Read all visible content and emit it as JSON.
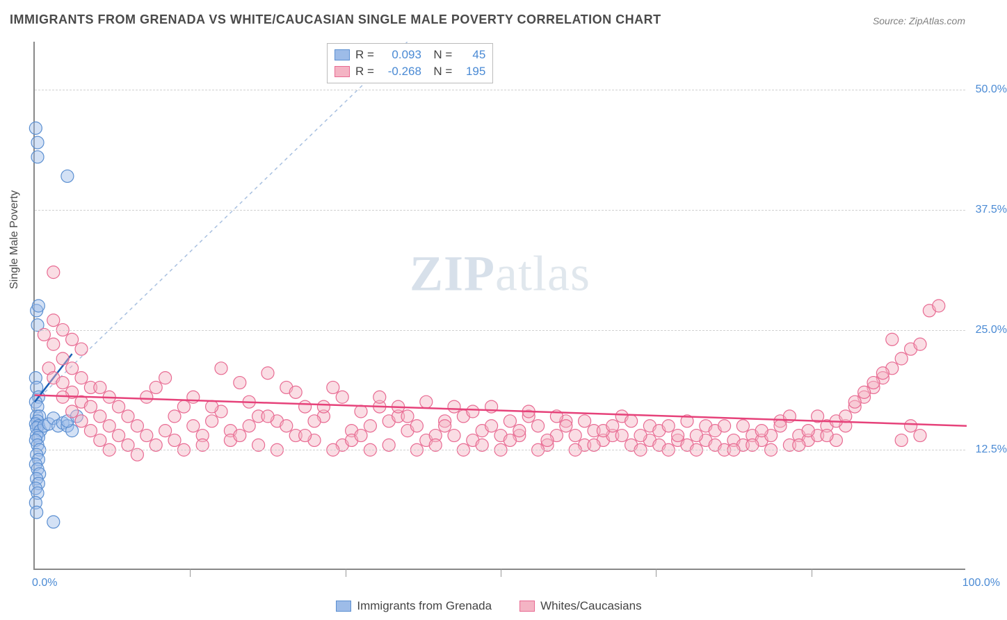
{
  "title": "IMMIGRANTS FROM GRENADA VS WHITE/CAUCASIAN SINGLE MALE POVERTY CORRELATION CHART",
  "source": "Source: ZipAtlas.com",
  "ylabel": "Single Male Poverty",
  "watermark": {
    "bold": "ZIP",
    "light": "atlas"
  },
  "chart": {
    "type": "scatter",
    "xlim": [
      0,
      100
    ],
    "ylim": [
      0,
      55
    ],
    "yticks": [
      12.5,
      25.0,
      37.5,
      50.0
    ],
    "ytick_labels": [
      "12.5%",
      "25.0%",
      "37.5%",
      "50.0%"
    ],
    "xticks_minor": [
      16.67,
      33.33,
      50.0,
      66.67,
      83.33
    ],
    "x_left_label": "0.0%",
    "x_right_label": "100.0%",
    "background_color": "#ffffff",
    "grid_color": "#d0d0d0",
    "axis_color": "#888888",
    "label_color": "#4a8ad4",
    "marker_radius": 9,
    "marker_opacity": 0.45,
    "series": [
      {
        "name": "Immigrants from Grenada",
        "fill": "#9dbce8",
        "stroke": "#5b8fd1",
        "R": "0.093",
        "N": "45",
        "trend": {
          "x1": 0,
          "y1": 17.5,
          "x2": 4,
          "y2": 22.5,
          "color": "#1a5fb4",
          "width": 2.5
        },
        "diag": {
          "x1": 0,
          "y1": 17.5,
          "x2": 40,
          "y2": 55,
          "dash": "5,5",
          "color": "#a8c0e0"
        },
        "points": [
          [
            0.1,
            46
          ],
          [
            0.3,
            44.5
          ],
          [
            0.3,
            43
          ],
          [
            3.5,
            41
          ],
          [
            0.2,
            27
          ],
          [
            0.4,
            27.5
          ],
          [
            0.3,
            25.5
          ],
          [
            0.1,
            20
          ],
          [
            0.2,
            19
          ],
          [
            0.4,
            18
          ],
          [
            0.1,
            17.5
          ],
          [
            0.3,
            17
          ],
          [
            0.2,
            16
          ],
          [
            0.5,
            16
          ],
          [
            0.3,
            15.5
          ],
          [
            0.1,
            15.2
          ],
          [
            0.4,
            15
          ],
          [
            0.2,
            14.8
          ],
          [
            0.6,
            14.5
          ],
          [
            1.0,
            15
          ],
          [
            1.5,
            15.2
          ],
          [
            2.0,
            15.8
          ],
          [
            2.5,
            15
          ],
          [
            3.0,
            15.3
          ],
          [
            3.5,
            15
          ],
          [
            4.0,
            14.5
          ],
          [
            0.2,
            14
          ],
          [
            0.4,
            13.8
          ],
          [
            0.1,
            13.5
          ],
          [
            0.3,
            13
          ],
          [
            0.5,
            12.5
          ],
          [
            0.2,
            12
          ],
          [
            0.4,
            11.5
          ],
          [
            0.1,
            11
          ],
          [
            0.3,
            10.5
          ],
          [
            0.5,
            10
          ],
          [
            0.2,
            9.5
          ],
          [
            0.4,
            9
          ],
          [
            0.1,
            8.5
          ],
          [
            0.3,
            8
          ],
          [
            0.1,
            7
          ],
          [
            0.2,
            6
          ],
          [
            2.0,
            5
          ],
          [
            3.5,
            15.5
          ],
          [
            4.5,
            16
          ]
        ]
      },
      {
        "name": "Whites/Caucasians",
        "fill": "#f4b4c4",
        "stroke": "#e86a92",
        "R": "-0.268",
        "N": "195",
        "trend": {
          "x1": 0,
          "y1": 18.2,
          "x2": 100,
          "y2": 15.0,
          "color": "#e6427a",
          "width": 2.5
        },
        "points": [
          [
            2,
            31
          ],
          [
            1,
            24.5
          ],
          [
            2,
            26
          ],
          [
            3,
            25
          ],
          [
            2,
            23.5
          ],
          [
            4,
            24
          ],
          [
            3,
            22
          ],
          [
            5,
            23
          ],
          [
            1.5,
            21
          ],
          [
            4,
            21
          ],
          [
            2,
            20
          ],
          [
            3,
            19.5
          ],
          [
            5,
            20
          ],
          [
            6,
            19
          ],
          [
            4,
            18.5
          ],
          [
            7,
            19
          ],
          [
            3,
            18
          ],
          [
            5,
            17.5
          ],
          [
            8,
            18
          ],
          [
            6,
            17
          ],
          [
            4,
            16.5
          ],
          [
            9,
            17
          ],
          [
            7,
            16
          ],
          [
            5,
            15.5
          ],
          [
            10,
            16
          ],
          [
            8,
            15
          ],
          [
            6,
            14.5
          ],
          [
            11,
            15
          ],
          [
            9,
            14
          ],
          [
            7,
            13.5
          ],
          [
            12,
            14
          ],
          [
            10,
            13
          ],
          [
            8,
            12.5
          ],
          [
            13,
            13
          ],
          [
            11,
            12
          ],
          [
            14,
            14.5
          ],
          [
            12,
            18
          ],
          [
            15,
            16
          ],
          [
            13,
            19
          ],
          [
            16,
            17
          ],
          [
            14,
            20
          ],
          [
            17,
            15
          ],
          [
            15,
            13.5
          ],
          [
            18,
            14
          ],
          [
            16,
            12.5
          ],
          [
            19,
            15.5
          ],
          [
            17,
            18
          ],
          [
            20,
            16.5
          ],
          [
            18,
            13
          ],
          [
            21,
            14.5
          ],
          [
            19,
            17
          ],
          [
            22,
            19.5
          ],
          [
            20,
            21
          ],
          [
            23,
            15
          ],
          [
            21,
            13.5
          ],
          [
            24,
            16
          ],
          [
            22,
            14
          ],
          [
            25,
            20.5
          ],
          [
            23,
            17.5
          ],
          [
            26,
            15.5
          ],
          [
            24,
            13
          ],
          [
            27,
            19
          ],
          [
            25,
            16
          ],
          [
            28,
            14
          ],
          [
            26,
            12.5
          ],
          [
            29,
            17
          ],
          [
            27,
            15
          ],
          [
            30,
            13.5
          ],
          [
            28,
            18.5
          ],
          [
            31,
            16
          ],
          [
            29,
            14
          ],
          [
            32,
            19
          ],
          [
            30,
            15.5
          ],
          [
            33,
            13
          ],
          [
            31,
            17
          ],
          [
            34,
            14.5
          ],
          [
            32,
            12.5
          ],
          [
            35,
            16.5
          ],
          [
            33,
            18
          ],
          [
            36,
            15
          ],
          [
            34,
            13.5
          ],
          [
            37,
            17
          ],
          [
            35,
            14
          ],
          [
            38,
            15.5
          ],
          [
            36,
            12.5
          ],
          [
            39,
            16
          ],
          [
            37,
            18
          ],
          [
            40,
            14.5
          ],
          [
            38,
            13
          ],
          [
            41,
            15
          ],
          [
            39,
            17
          ],
          [
            42,
            13.5
          ],
          [
            40,
            16
          ],
          [
            43,
            14
          ],
          [
            41,
            12.5
          ],
          [
            44,
            15.5
          ],
          [
            42,
            17.5
          ],
          [
            45,
            14
          ],
          [
            43,
            13
          ],
          [
            46,
            16
          ],
          [
            44,
            15
          ],
          [
            47,
            13.5
          ],
          [
            45,
            17
          ],
          [
            48,
            14.5
          ],
          [
            46,
            12.5
          ],
          [
            49,
            15
          ],
          [
            47,
            16.5
          ],
          [
            50,
            14
          ],
          [
            48,
            13
          ],
          [
            51,
            15.5
          ],
          [
            49,
            17
          ],
          [
            52,
            14
          ],
          [
            50,
            12.5
          ],
          [
            53,
            16
          ],
          [
            51,
            13.5
          ],
          [
            54,
            15
          ],
          [
            52,
            14.5
          ],
          [
            55,
            13
          ],
          [
            53,
            16.5
          ],
          [
            56,
            14
          ],
          [
            54,
            12.5
          ],
          [
            57,
            15.5
          ],
          [
            55,
            13.5
          ],
          [
            58,
            14
          ],
          [
            56,
            16
          ],
          [
            59,
            13
          ],
          [
            57,
            15
          ],
          [
            60,
            14.5
          ],
          [
            58,
            12.5
          ],
          [
            61,
            13.5
          ],
          [
            59,
            15.5
          ],
          [
            62,
            14
          ],
          [
            60,
            13
          ],
          [
            63,
            16
          ],
          [
            61,
            14.5
          ],
          [
            64,
            13
          ],
          [
            62,
            15
          ],
          [
            65,
            12.5
          ],
          [
            63,
            14
          ],
          [
            66,
            13.5
          ],
          [
            64,
            15.5
          ],
          [
            67,
            13
          ],
          [
            65,
            14
          ],
          [
            68,
            12.5
          ],
          [
            66,
            15
          ],
          [
            69,
            13.5
          ],
          [
            67,
            14.5
          ],
          [
            70,
            13
          ],
          [
            68,
            15
          ],
          [
            71,
            12.5
          ],
          [
            69,
            14
          ],
          [
            72,
            13.5
          ],
          [
            70,
            15.5
          ],
          [
            73,
            13
          ],
          [
            71,
            14
          ],
          [
            74,
            12.5
          ],
          [
            72,
            15
          ],
          [
            75,
            13.5
          ],
          [
            73,
            14.5
          ],
          [
            76,
            13
          ],
          [
            74,
            15
          ],
          [
            77,
            14
          ],
          [
            75,
            12.5
          ],
          [
            78,
            13.5
          ],
          [
            76,
            15
          ],
          [
            79,
            14
          ],
          [
            77,
            13
          ],
          [
            80,
            15.5
          ],
          [
            78,
            14.5
          ],
          [
            81,
            13
          ],
          [
            79,
            12.5
          ],
          [
            82,
            14
          ],
          [
            80,
            15
          ],
          [
            83,
            13.5
          ],
          [
            81,
            16
          ],
          [
            84,
            14
          ],
          [
            82,
            13
          ],
          [
            85,
            15
          ],
          [
            83,
            14.5
          ],
          [
            86,
            13.5
          ],
          [
            84,
            16
          ],
          [
            87,
            15
          ],
          [
            85,
            14
          ],
          [
            88,
            17
          ],
          [
            86,
            15.5
          ],
          [
            89,
            18
          ],
          [
            87,
            16
          ],
          [
            90,
            19
          ],
          [
            88,
            17.5
          ],
          [
            91,
            20
          ],
          [
            89,
            18.5
          ],
          [
            92,
            21
          ],
          [
            90,
            19.5
          ],
          [
            93,
            22
          ],
          [
            91,
            20.5
          ],
          [
            94,
            23
          ],
          [
            92,
            24
          ],
          [
            95,
            23.5
          ],
          [
            96,
            27
          ],
          [
            97,
            27.5
          ],
          [
            95,
            14
          ],
          [
            93,
            13.5
          ],
          [
            94,
            15
          ]
        ]
      }
    ]
  },
  "legend_top": {
    "r_label": "R =",
    "n_label": "N ="
  },
  "legend_bottom": [
    {
      "label": "Immigrants from Grenada",
      "fill": "#9dbce8",
      "stroke": "#5b8fd1"
    },
    {
      "label": "Whites/Caucasians",
      "fill": "#f4b4c4",
      "stroke": "#e86a92"
    }
  ]
}
